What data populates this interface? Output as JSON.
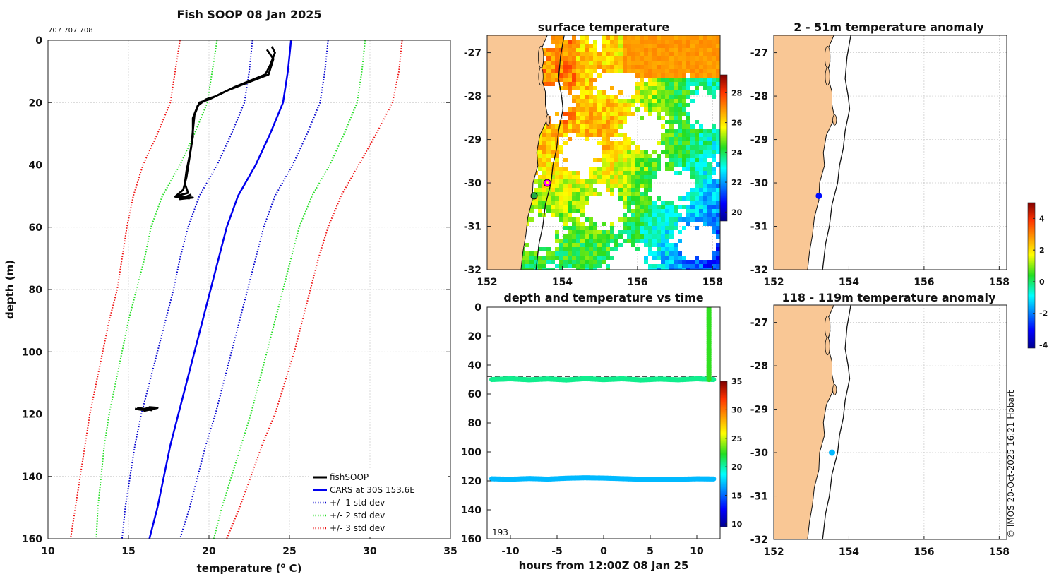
{
  "colors": {
    "land": "#f9c795",
    "cars": "#0000ee",
    "std1": "#0000cc",
    "std2": "#22dd22",
    "std3": "#ee1111",
    "fish": "#000000"
  },
  "credit": "© IMOS 20-Oct-2025 16:21 Hobart",
  "chart_data": [
    {
      "id": "profile",
      "type": "line",
      "title": "Fish SOOP 08 Jan 2025",
      "subtitle": "707 707 708",
      "xlabel": "temperature (",
      "xlabel_sup": "o",
      "xlabel_end": " C)",
      "ylabel": "depth (m)",
      "xlim": [
        10,
        35
      ],
      "ylim": [
        0,
        160
      ],
      "xticks": [
        10,
        15,
        20,
        25,
        30,
        35
      ],
      "yticks": [
        0,
        20,
        40,
        60,
        80,
        100,
        120,
        140,
        160
      ],
      "grid": true,
      "legend": {
        "position": "bottom-right",
        "entries": [
          "fishSOOP",
          "CARS at 30S 153.6E",
          "+/- 1 std dev",
          "+/- 2 std dev",
          "+/- 3 std dev"
        ]
      },
      "depth": [
        0,
        10,
        20,
        30,
        40,
        50,
        60,
        70,
        80,
        90,
        100,
        110,
        120,
        130,
        140,
        150,
        160
      ],
      "series": [
        {
          "name": "CARS at 30S 153.6E",
          "style": "solid",
          "color": "cars",
          "values": [
            25.1,
            24.9,
            24.6,
            23.8,
            22.9,
            21.8,
            21.1,
            20.6,
            20.1,
            19.6,
            19.1,
            18.6,
            18.1,
            17.6,
            17.2,
            16.8,
            16.3
          ]
        },
        {
          "name": "+1 std",
          "style": "dotted",
          "color": "std1",
          "values": [
            27.4,
            27.2,
            26.9,
            26.1,
            25.2,
            24.1,
            23.4,
            22.9,
            22.4,
            21.9,
            21.4,
            20.9,
            20.4,
            19.8,
            19.3,
            18.8,
            18.2
          ]
        },
        {
          "name": "-1 std",
          "style": "dotted",
          "color": "std1",
          "values": [
            22.7,
            22.5,
            22.2,
            21.4,
            20.5,
            19.4,
            18.7,
            18.2,
            17.8,
            17.3,
            16.8,
            16.3,
            15.8,
            15.4,
            15.1,
            14.8,
            14.6
          ]
        },
        {
          "name": "+2 std",
          "style": "dotted",
          "color": "std2",
          "values": [
            29.7,
            29.5,
            29.2,
            28.4,
            27.5,
            26.4,
            25.6,
            25.1,
            24.6,
            24.1,
            23.6,
            23.1,
            22.6,
            22.0,
            21.4,
            20.8,
            20.3
          ]
        },
        {
          "name": "-2 std",
          "style": "dotted",
          "color": "std2",
          "values": [
            20.5,
            20.2,
            19.9,
            19.1,
            18.2,
            17.1,
            16.4,
            16.0,
            15.5,
            15.0,
            14.6,
            14.2,
            13.8,
            13.5,
            13.3,
            13.1,
            13.0
          ]
        },
        {
          "name": "+3 std",
          "style": "dotted",
          "color": "std3",
          "values": [
            32.0,
            31.8,
            31.4,
            30.4,
            29.3,
            28.2,
            27.4,
            26.8,
            26.3,
            25.8,
            25.3,
            24.7,
            24.1,
            23.3,
            22.6,
            21.9,
            21.1
          ]
        },
        {
          "name": "-3 std",
          "style": "dotted",
          "color": "std3",
          "values": [
            18.2,
            17.9,
            17.6,
            16.8,
            15.9,
            15.3,
            14.9,
            14.6,
            14.3,
            13.8,
            13.4,
            13.0,
            12.6,
            12.3,
            12.0,
            11.7,
            11.4
          ]
        }
      ],
      "fish_profile": {
        "name": "fishSOOP",
        "points": [
          [
            23.9,
            2
          ],
          [
            24.1,
            4
          ],
          [
            23.8,
            8
          ],
          [
            23.5,
            11
          ],
          [
            21.6,
            15
          ],
          [
            20.4,
            18
          ],
          [
            19.8,
            19
          ],
          [
            19.3,
            21
          ],
          [
            19.0,
            25
          ],
          [
            19.0,
            31
          ],
          [
            18.8,
            37
          ],
          [
            18.6,
            42
          ],
          [
            18.5,
            46
          ],
          [
            18.7,
            49
          ],
          [
            18.0,
            50
          ],
          [
            19.0,
            50.5
          ],
          [
            18.2,
            51
          ],
          [
            18.9,
            49.5
          ]
        ],
        "points2": [
          [
            23.6,
            3
          ],
          [
            24.0,
            6
          ],
          [
            23.7,
            11
          ],
          [
            21.2,
            16
          ],
          [
            20.0,
            19
          ],
          [
            19.4,
            20
          ],
          [
            19.1,
            24
          ],
          [
            18.9,
            34
          ],
          [
            18.6,
            44
          ],
          [
            18.4,
            48
          ],
          [
            17.9,
            50.2
          ],
          [
            18.8,
            50.8
          ]
        ],
        "cluster_118": [
          [
            15.4,
            118.3
          ],
          [
            15.8,
            118.6
          ],
          [
            16.2,
            118.1
          ],
          [
            16.6,
            118.4
          ],
          [
            16.3,
            117.8
          ],
          [
            16.8,
            118.0
          ],
          [
            16.0,
            118.9
          ],
          [
            15.6,
            118.0
          ],
          [
            16.5,
            118.8
          ]
        ]
      }
    },
    {
      "id": "sst",
      "type": "heatmap",
      "title": "surface temperature",
      "xlim": [
        152,
        158.2
      ],
      "ylim": [
        -32,
        -26.6
      ],
      "xticks": [
        152,
        154,
        156,
        158
      ],
      "yticks": [
        -27,
        -28,
        -29,
        -30,
        -31,
        -32
      ],
      "colorbar": {
        "range": [
          19.4,
          29.2
        ],
        "ticks": [
          20,
          22,
          24,
          26,
          28
        ]
      },
      "markers": [
        {
          "lon": 153.6,
          "lat": -30.0,
          "style": "magenta"
        },
        {
          "lon": 153.25,
          "lat": -30.3,
          "style": "green"
        }
      ]
    },
    {
      "id": "anom1",
      "type": "scatter",
      "title": "2 - 51m temperature anomaly",
      "xlim": [
        152,
        158.2
      ],
      "ylim": [
        -32,
        -26.6
      ],
      "xticks": [
        152,
        154,
        156,
        158
      ],
      "yticks": [
        -27,
        -28,
        -29,
        -30,
        -31,
        -32
      ],
      "points": [
        {
          "lon": 153.2,
          "lat": -30.3,
          "anomaly": -3.0
        }
      ]
    },
    {
      "id": "anom2",
      "type": "scatter",
      "title": "118 - 119m temperature anomaly",
      "xlim": [
        152,
        158.2
      ],
      "ylim": [
        -32,
        -26.6
      ],
      "xticks": [
        152,
        154,
        156,
        158
      ],
      "yticks": [
        -27,
        -28,
        -29,
        -30,
        -31,
        -32
      ],
      "points": [
        {
          "lon": 153.55,
          "lat": -30.0,
          "anomaly": -1.5
        }
      ],
      "colorbar": {
        "range": [
          -4.2,
          5.0
        ],
        "ticks": [
          -4,
          -2,
          0,
          2,
          4
        ]
      }
    },
    {
      "id": "timeseries",
      "type": "scatter",
      "title": "depth and temperature vs time",
      "xlabel": "hours from 12:00Z 08 Jan 25",
      "xlim": [
        -12.5,
        12.5
      ],
      "ylim": [
        0,
        160
      ],
      "xticks": [
        -10,
        -5,
        0,
        5,
        10
      ],
      "yticks": [
        0,
        20,
        40,
        60,
        80,
        100,
        120,
        140,
        160
      ],
      "reference_depth": 48,
      "label": "193",
      "colorbar": {
        "range": [
          9.5,
          35
        ],
        "ticks": [
          10,
          15,
          20,
          25,
          30,
          35
        ]
      },
      "series": [
        {
          "name": "shallow",
          "hours": [
            -12.0,
            -10,
            -8,
            -6,
            -4,
            -2,
            0,
            2,
            4,
            6,
            8,
            10,
            11.8
          ],
          "depths": [
            50,
            49.5,
            50.2,
            49.6,
            50.3,
            49.4,
            50.1,
            49.5,
            50.3,
            49.7,
            50.2,
            49.5,
            50.0
          ],
          "temp": 20.5
        },
        {
          "name": "deep",
          "hours": [
            -12.0,
            -10,
            -8,
            -6,
            -4,
            -2,
            0,
            2,
            4,
            6,
            8,
            10,
            11.8
          ],
          "depths": [
            118.6,
            118.9,
            118.4,
            118.8,
            118.2,
            117.9,
            118.1,
            118.5,
            118.9,
            119.2,
            118.9,
            118.6,
            118.7
          ],
          "temp": 17.0
        },
        {
          "name": "cast",
          "hours": [
            11.3,
            11.3,
            11.3,
            11.3,
            11.3
          ],
          "depths": [
            0,
            12,
            25,
            38,
            50
          ],
          "temp": 22.5
        }
      ]
    }
  ]
}
